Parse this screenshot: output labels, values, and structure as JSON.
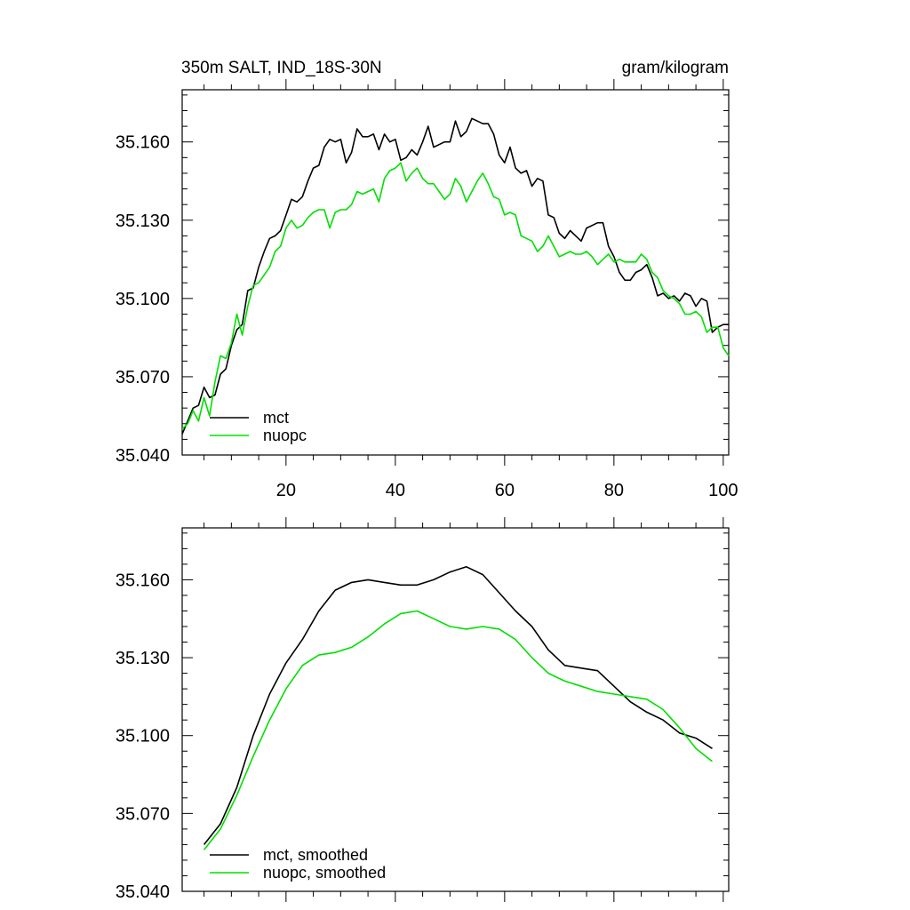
{
  "header": {
    "left_title": "350m SALT, IND_18S-30N",
    "right_title": "gram/kilogram"
  },
  "colors": {
    "mct": "#000000",
    "nuopc": "#00e000",
    "axis": "#000000",
    "background": "#ffffff"
  },
  "chart_data": [
    {
      "type": "line",
      "title": "350m SALT, IND_18S-30N",
      "units": "gram/kilogram",
      "xlim": [
        1,
        101
      ],
      "ylim": [
        35.04,
        35.18
      ],
      "x_ticks": [
        20,
        40,
        60,
        80,
        100
      ],
      "x_tick_labels": [
        "20",
        "40",
        "60",
        "80",
        "100"
      ],
      "y_ticks": [
        35.04,
        35.07,
        35.1,
        35.13,
        35.16
      ],
      "y_tick_labels": [
        "35.040",
        "35.070",
        "35.100",
        "35.130",
        "35.160"
      ],
      "legend": {
        "position": "bottom-left",
        "entries": [
          "mct",
          "nuopc"
        ]
      },
      "series": [
        {
          "name": "mct",
          "color": "#000000",
          "x": [
            1,
            2,
            3,
            4,
            5,
            6,
            7,
            8,
            9,
            10,
            11,
            12,
            13,
            14,
            15,
            16,
            17,
            18,
            19,
            20,
            21,
            22,
            23,
            24,
            25,
            26,
            27,
            28,
            29,
            30,
            31,
            32,
            33,
            34,
            35,
            36,
            37,
            38,
            39,
            40,
            41,
            42,
            43,
            44,
            45,
            46,
            47,
            48,
            49,
            50,
            51,
            52,
            53,
            54,
            55,
            56,
            57,
            58,
            59,
            60,
            61,
            62,
            63,
            64,
            65,
            66,
            67,
            68,
            69,
            70,
            71,
            72,
            73,
            74,
            75,
            76,
            77,
            78,
            79,
            80,
            81,
            82,
            83,
            84,
            85,
            86,
            87,
            88,
            89,
            90,
            91,
            92,
            93,
            94,
            95,
            96,
            97,
            98,
            99,
            100,
            101
          ],
          "values": [
            35.048,
            35.053,
            35.058,
            35.059,
            35.066,
            35.062,
            35.063,
            35.071,
            35.073,
            35.082,
            35.088,
            35.09,
            35.103,
            35.104,
            35.112,
            35.118,
            35.123,
            35.124,
            35.126,
            35.132,
            35.138,
            35.137,
            35.139,
            35.145,
            35.15,
            35.151,
            35.158,
            35.161,
            35.16,
            35.161,
            35.152,
            35.156,
            35.165,
            35.162,
            35.162,
            35.163,
            35.157,
            35.163,
            35.16,
            35.161,
            35.153,
            35.154,
            35.157,
            35.155,
            35.16,
            35.166,
            35.158,
            35.159,
            35.16,
            35.16,
            35.168,
            35.162,
            35.164,
            35.169,
            35.168,
            35.167,
            35.167,
            35.163,
            35.155,
            35.152,
            35.158,
            35.15,
            35.148,
            35.149,
            35.143,
            35.146,
            35.145,
            35.132,
            35.131,
            35.125,
            35.123,
            35.126,
            35.124,
            35.122,
            35.127,
            35.128,
            35.129,
            35.129,
            35.12,
            35.116,
            35.11,
            35.107,
            35.107,
            35.11,
            35.111,
            35.113,
            35.108,
            35.101,
            35.102,
            35.1,
            35.101,
            35.099,
            35.102,
            35.101,
            35.097,
            35.1,
            35.099,
            35.087,
            35.089,
            35.09,
            35.09
          ]
        },
        {
          "name": "nuopc",
          "color": "#00e000",
          "x": [
            1,
            2,
            3,
            4,
            5,
            6,
            7,
            8,
            9,
            10,
            11,
            12,
            13,
            14,
            15,
            16,
            17,
            18,
            19,
            20,
            21,
            22,
            23,
            24,
            25,
            26,
            27,
            28,
            29,
            30,
            31,
            32,
            33,
            34,
            35,
            36,
            37,
            38,
            39,
            40,
            41,
            42,
            43,
            44,
            45,
            46,
            47,
            48,
            49,
            50,
            51,
            52,
            53,
            54,
            55,
            56,
            57,
            58,
            59,
            60,
            61,
            62,
            63,
            64,
            65,
            66,
            67,
            68,
            69,
            70,
            71,
            72,
            73,
            74,
            75,
            76,
            77,
            78,
            79,
            80,
            81,
            82,
            83,
            84,
            85,
            86,
            87,
            88,
            89,
            90,
            91,
            92,
            93,
            94,
            95,
            96,
            97,
            98,
            99,
            100,
            101
          ],
          "values": [
            35.05,
            35.052,
            35.057,
            35.053,
            35.062,
            35.055,
            35.068,
            35.078,
            35.077,
            35.083,
            35.094,
            35.086,
            35.097,
            35.105,
            35.106,
            35.109,
            35.112,
            35.118,
            35.12,
            35.127,
            35.13,
            35.127,
            35.128,
            35.131,
            35.133,
            35.134,
            35.134,
            35.127,
            35.133,
            35.134,
            35.134,
            35.136,
            35.141,
            35.14,
            35.141,
            35.142,
            35.137,
            35.146,
            35.149,
            35.15,
            35.152,
            35.145,
            35.148,
            35.15,
            35.146,
            35.144,
            35.144,
            35.141,
            35.138,
            35.14,
            35.146,
            35.143,
            35.137,
            35.141,
            35.145,
            35.148,
            35.144,
            35.139,
            35.138,
            35.132,
            35.133,
            35.132,
            35.124,
            35.123,
            35.122,
            35.118,
            35.12,
            35.124,
            35.12,
            35.116,
            35.117,
            35.118,
            35.117,
            35.117,
            35.118,
            35.116,
            35.113,
            35.115,
            35.117,
            35.114,
            35.115,
            35.114,
            35.114,
            35.114,
            35.117,
            35.115,
            35.11,
            35.108,
            35.103,
            35.101,
            35.1,
            35.098,
            35.094,
            35.094,
            35.095,
            35.093,
            35.087,
            35.089,
            35.089,
            35.081,
            35.078
          ]
        }
      ]
    },
    {
      "type": "line",
      "xlim": [
        1,
        101
      ],
      "ylim": [
        35.04,
        35.18
      ],
      "x_ticks": [
        20,
        40,
        60,
        80,
        100
      ],
      "y_ticks": [
        35.04,
        35.07,
        35.1,
        35.13,
        35.16
      ],
      "y_tick_labels": [
        "35.040",
        "35.070",
        "35.100",
        "35.130",
        "35.160"
      ],
      "legend": {
        "position": "bottom-left",
        "entries": [
          "mct, smoothed",
          "nuopc, smoothed"
        ]
      },
      "series": [
        {
          "name": "mct, smoothed",
          "color": "#000000",
          "x": [
            5,
            8,
            11,
            14,
            17,
            20,
            23,
            26,
            29,
            32,
            35,
            38,
            41,
            44,
            47,
            50,
            53,
            56,
            59,
            62,
            65,
            68,
            71,
            74,
            77,
            80,
            83,
            86,
            89,
            92,
            95,
            98
          ],
          "values": [
            35.058,
            35.066,
            35.08,
            35.1,
            35.116,
            35.128,
            35.137,
            35.148,
            35.156,
            35.159,
            35.16,
            35.159,
            35.158,
            35.158,
            35.16,
            35.163,
            35.165,
            35.162,
            35.155,
            35.148,
            35.142,
            35.133,
            35.127,
            35.126,
            35.125,
            35.119,
            35.113,
            35.109,
            35.106,
            35.101,
            35.099,
            35.095
          ]
        },
        {
          "name": "nuopc, smoothed",
          "color": "#00e000",
          "x": [
            5,
            8,
            11,
            14,
            17,
            20,
            23,
            26,
            29,
            32,
            35,
            38,
            41,
            44,
            47,
            50,
            53,
            56,
            59,
            62,
            65,
            68,
            71,
            74,
            77,
            80,
            83,
            86,
            89,
            92,
            95,
            98
          ],
          "values": [
            35.056,
            35.064,
            35.077,
            35.092,
            35.106,
            35.118,
            35.127,
            35.131,
            35.132,
            35.134,
            35.138,
            35.143,
            35.147,
            35.148,
            35.145,
            35.142,
            35.141,
            35.142,
            35.141,
            35.137,
            35.13,
            35.124,
            35.121,
            35.119,
            35.117,
            35.116,
            35.115,
            35.114,
            35.11,
            35.103,
            35.095,
            35.09
          ]
        }
      ]
    }
  ]
}
